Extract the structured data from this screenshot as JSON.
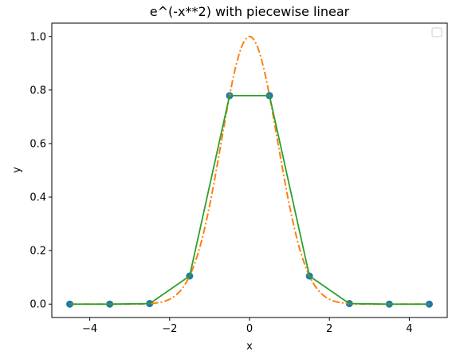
{
  "chart_data": {
    "type": "line",
    "title": "e^(-x**2) with piecewise linear",
    "xlabel": "x",
    "ylabel": "y",
    "xlim": [
      -4.95,
      4.95
    ],
    "ylim": [
      -0.05,
      1.05
    ],
    "xticks": [
      -4,
      -2,
      0,
      2,
      4
    ],
    "xtick_labels": [
      "−4",
      "−2",
      "0",
      "2",
      "4"
    ],
    "yticks": [
      0.0,
      0.2,
      0.4,
      0.6,
      0.8,
      1.0
    ],
    "ytick_labels": [
      "0.0",
      "0.2",
      "0.4",
      "0.6",
      "0.8",
      "1.0"
    ],
    "grid": false,
    "legend": {
      "placement": "top-right",
      "entries": []
    },
    "series": [
      {
        "kind": "scatter",
        "color": "#1f77b4",
        "x": [
          -4.5,
          -3.5,
          -2.5,
          -1.5,
          -0.5,
          0.5,
          1.5,
          2.5,
          3.5,
          4.5
        ],
        "y": [
          0.0,
          0.0,
          0.002,
          0.105,
          0.779,
          0.779,
          0.105,
          0.002,
          0.0,
          0.0
        ]
      },
      {
        "kind": "function",
        "function": "e^(-x**2)",
        "color": "#ff7f0e",
        "linestyle": "dashdot",
        "x_range": [
          -4.5,
          4.5
        ]
      },
      {
        "kind": "line",
        "color": "#2ca02c",
        "linestyle": "solid",
        "x": [
          -4.5,
          -3.5,
          -2.5,
          -1.5,
          -0.5,
          0.5,
          1.5,
          2.5,
          3.5,
          4.5
        ],
        "y": [
          0.0,
          0.0,
          0.002,
          0.105,
          0.779,
          0.779,
          0.105,
          0.002,
          0.0,
          0.0
        ]
      }
    ]
  }
}
